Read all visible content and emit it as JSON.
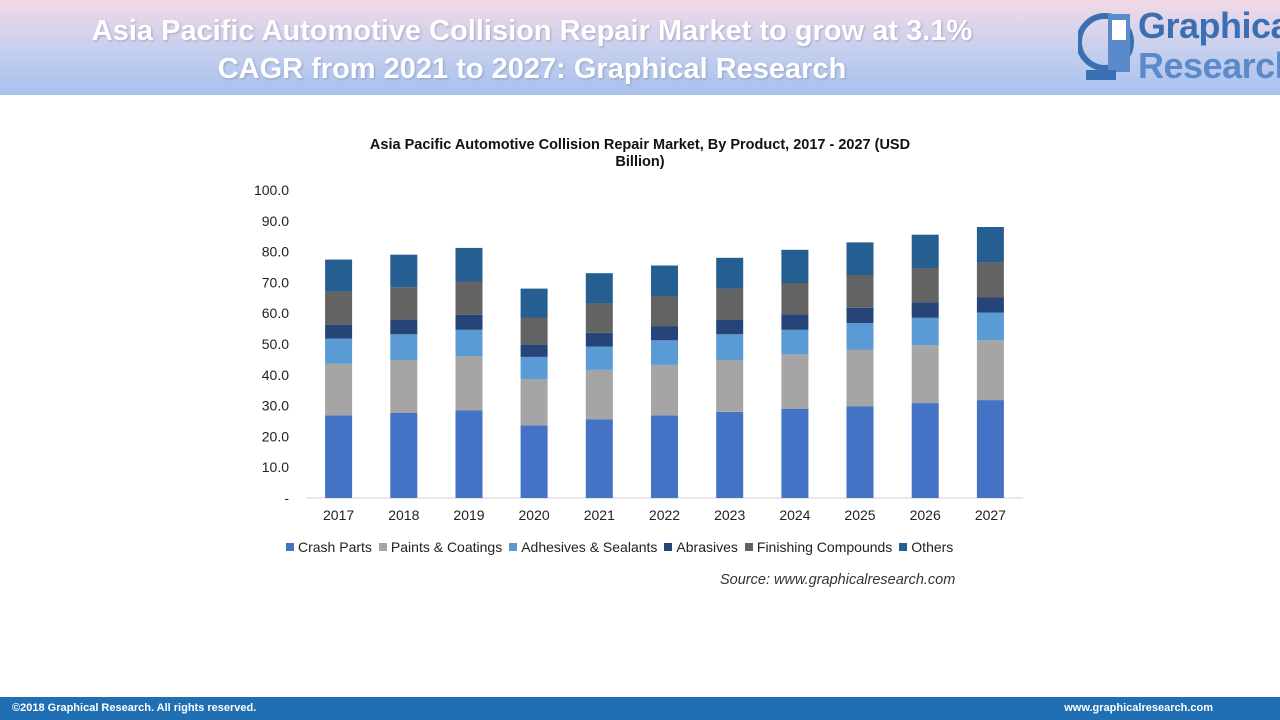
{
  "header": {
    "headline": "Asia Pacific Automotive Collision Repair Market to grow at 3.1%\nCAGR from 2021 to 2027: Graphical Research",
    "logo_line1": "Graphical",
    "logo_line2": "Research",
    "logo_mark": "GR"
  },
  "chart_data": {
    "type": "bar",
    "stacked": true,
    "title": "Asia Pacific Automotive Collision Repair Market, By Product, 2017 - 2027 (USD\nBillion)",
    "xlabel": "",
    "ylabel": "",
    "ylim": [
      0,
      100
    ],
    "yticks": [
      "-",
      "10.0",
      "20.0",
      "30.0",
      "40.0",
      "50.0",
      "60.0",
      "70.0",
      "80.0",
      "90.0",
      "100.0"
    ],
    "grid": false,
    "legend_position": "bottom",
    "categories": [
      "2017",
      "2018",
      "2019",
      "2020",
      "2021",
      "2022",
      "2023",
      "2024",
      "2025",
      "2026",
      "2027"
    ],
    "series": [
      {
        "name": "Crash Parts",
        "color": "#4472c4",
        "values": [
          26.8,
          27.6,
          28.5,
          23.6,
          25.6,
          26.8,
          28.0,
          29.0,
          29.8,
          30.8,
          31.8
        ]
      },
      {
        "name": "Paints & Coatings",
        "color": "#a5a5a5",
        "values": [
          16.8,
          17.2,
          17.6,
          15.0,
          16.0,
          16.4,
          16.8,
          17.6,
          18.4,
          18.8,
          19.4
        ]
      },
      {
        "name": "Adhesives & Sealants",
        "color": "#5b9bd5",
        "values": [
          8.2,
          8.4,
          8.5,
          7.2,
          7.6,
          8.0,
          8.4,
          8.0,
          8.6,
          8.9,
          9.0
        ]
      },
      {
        "name": "Abrasives",
        "color": "#264478",
        "values": [
          4.6,
          4.8,
          4.9,
          4.0,
          4.4,
          4.6,
          4.6,
          5.0,
          5.0,
          5.0,
          4.9
        ]
      },
      {
        "name": "Finishing Compounds",
        "color": "#636363",
        "values": [
          10.6,
          10.4,
          10.8,
          8.8,
          9.6,
          9.8,
          10.2,
          10.2,
          10.6,
          11.2,
          11.4
        ]
      },
      {
        "name": "Others",
        "color": "#255e91",
        "values": [
          10.4,
          10.6,
          10.9,
          9.4,
          9.8,
          9.9,
          10.0,
          10.8,
          10.6,
          10.8,
          11.5
        ]
      }
    ],
    "source": "Source: www.graphicalresearch.com"
  },
  "footer": {
    "copyright": "©2018 Graphical Research. All rights reserved.",
    "website": "www.graphicalresearch.com"
  },
  "colors": {
    "footer_bg": "#1f6fb2",
    "logo_blue": "#3b6fb4"
  }
}
